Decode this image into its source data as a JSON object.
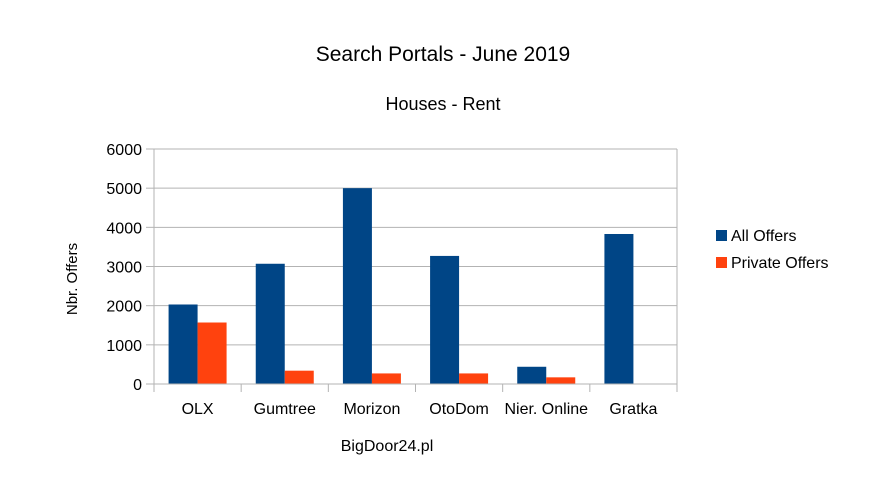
{
  "chart_data": {
    "type": "bar",
    "title": "Search Portals - June 2019",
    "subtitle": "Houses - Rent",
    "xlabel": "BigDoor24.pl",
    "ylabel": "Nbr. Offers",
    "categories": [
      "OLX",
      "Gumtree",
      "Morizon",
      "OtoDom",
      "Nier. Online",
      "Gratka"
    ],
    "series": [
      {
        "name": "All Offers",
        "color": "#004586",
        "values": [
          2030,
          3070,
          5000,
          3270,
          440,
          3830
        ]
      },
      {
        "name": "Private Offers",
        "color": "#ff420e",
        "values": [
          1570,
          340,
          270,
          270,
          170,
          0
        ]
      }
    ],
    "ylim": [
      0,
      6000
    ],
    "yticks": [
      0,
      1000,
      2000,
      3000,
      4000,
      5000,
      6000
    ],
    "grid": true,
    "legend_position": "right"
  }
}
